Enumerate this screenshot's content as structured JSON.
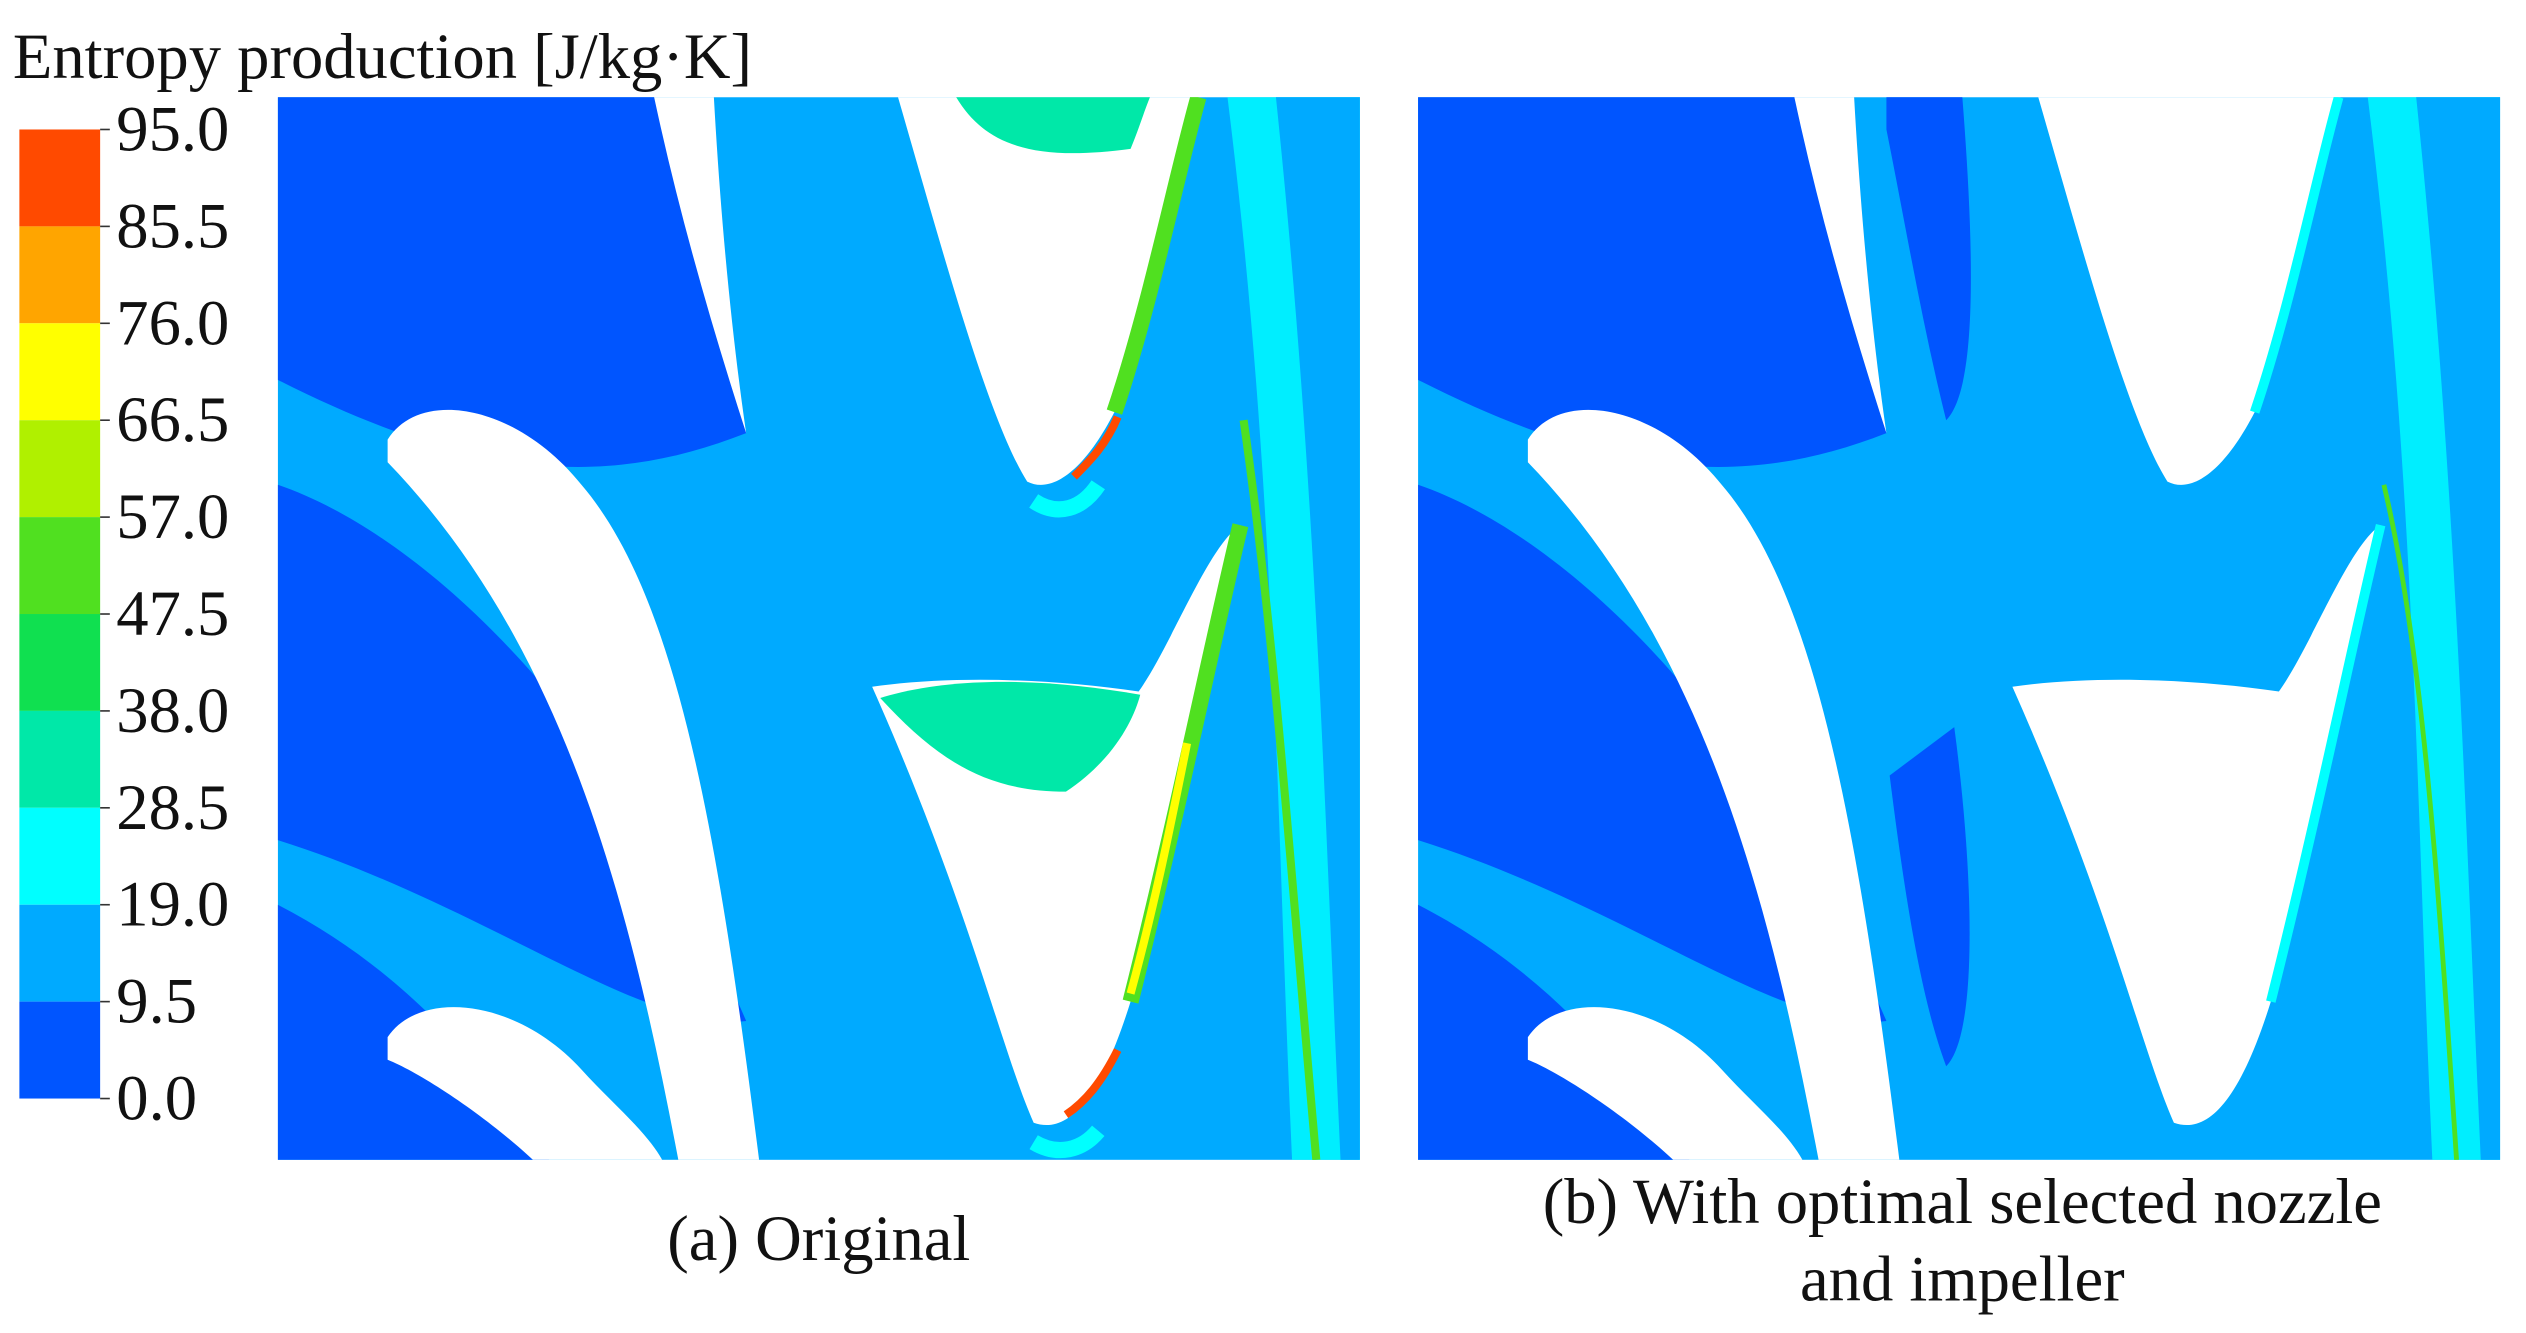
{
  "colorbar": {
    "title": "Entropy production [J/kg·K]",
    "ticks": [
      {
        "value": 95,
        "label": "95.0"
      },
      {
        "value": 85.5,
        "label": "85.5"
      },
      {
        "value": 76,
        "label": "76.0"
      },
      {
        "value": 66.5,
        "label": "66.5"
      },
      {
        "value": 57,
        "label": "57.0"
      },
      {
        "value": 47.5,
        "label": "47.5"
      },
      {
        "value": 38,
        "label": "38.0"
      },
      {
        "value": 28.5,
        "label": "28.5"
      },
      {
        "value": 19,
        "label": "19.0"
      },
      {
        "value": 9.5,
        "label": "9.5"
      },
      {
        "value": 0,
        "label": "0.0"
      }
    ],
    "colors": [
      "#ff4a00",
      "#ffa500",
      "#ffff00",
      "#b0f000",
      "#50e020",
      "#10e050",
      "#00e8a8",
      "#00ffff",
      "#00aaff",
      "#0055ff"
    ]
  },
  "panels": [
    {
      "caption_lines": [
        "(a) Original"
      ]
    },
    {
      "caption_lines": [
        "(b) With optimal selected nozzle",
        "and impeller"
      ]
    }
  ]
}
